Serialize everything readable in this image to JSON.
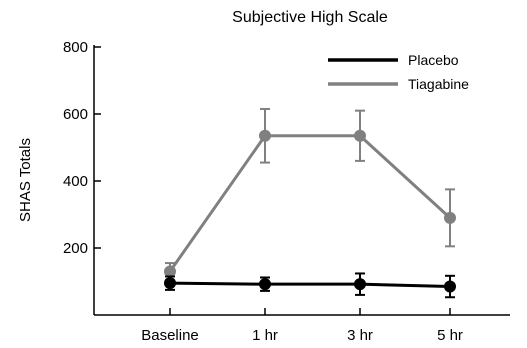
{
  "chart_data": {
    "type": "line",
    "title": "Subjective High Scale",
    "xlabel": "",
    "ylabel": "SHAS Totals",
    "categories": [
      "Baseline",
      "1 hr",
      "3 hr",
      "5 hr"
    ],
    "yticks": [
      200,
      400,
      600,
      800
    ],
    "ylim": [
      0,
      800
    ],
    "grid": false,
    "legend_position": "top-right",
    "series": [
      {
        "name": "Placebo",
        "color": "#000000",
        "values": [
          95,
          92,
          92,
          85
        ],
        "errors": [
          20,
          20,
          32,
          32
        ]
      },
      {
        "name": "Tiagabine",
        "color": "#808080",
        "values": [
          130,
          535,
          535,
          290
        ],
        "errors": [
          25,
          80,
          75,
          85
        ]
      }
    ]
  }
}
